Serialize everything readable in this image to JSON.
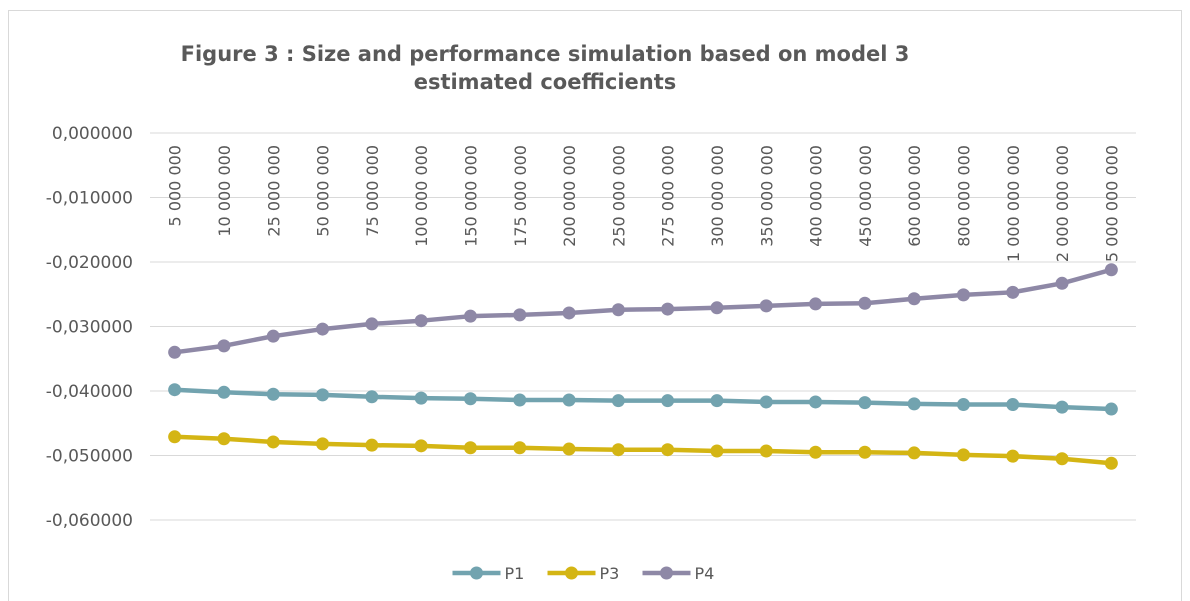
{
  "chart_data": {
    "type": "line",
    "title": "Figure 3 : Size and performance simulation based on model 3 estimated coefficients",
    "categories": [
      "5 000 000",
      "10 000 000",
      "25 000 000",
      "50 000 000",
      "75 000 000",
      "100 000 000",
      "150 000 000",
      "175 000 000",
      "200 000 000",
      "250 000 000",
      "275 000 000",
      "300 000 000",
      "350 000 000",
      "400 000 000",
      "450 000 000",
      "600 000 000",
      "800 000 000",
      "1 000 000 000",
      "2 000 000 000",
      "5 000 000 000"
    ],
    "series": [
      {
        "name": "P1",
        "color": "#72a3af",
        "values": [
          -0.0398,
          -0.0402,
          -0.0405,
          -0.0406,
          -0.0409,
          -0.0411,
          -0.0412,
          -0.0414,
          -0.0414,
          -0.0415,
          -0.0415,
          -0.0415,
          -0.0417,
          -0.0417,
          -0.0418,
          -0.042,
          -0.0421,
          -0.0421,
          -0.0425,
          -0.0428
        ]
      },
      {
        "name": "P3",
        "color": "#d4b514",
        "values": [
          -0.0471,
          -0.0474,
          -0.0479,
          -0.0482,
          -0.0484,
          -0.0485,
          -0.0488,
          -0.0488,
          -0.049,
          -0.0491,
          -0.0491,
          -0.0493,
          -0.0493,
          -0.0495,
          -0.0495,
          -0.0496,
          -0.0499,
          -0.0501,
          -0.0505,
          -0.0512
        ]
      },
      {
        "name": "P4",
        "color": "#8e88a6",
        "values": [
          -0.034,
          -0.033,
          -0.0315,
          -0.0304,
          -0.0296,
          -0.0291,
          -0.0284,
          -0.0282,
          -0.0279,
          -0.0274,
          -0.0273,
          -0.0271,
          -0.0268,
          -0.0265,
          -0.0264,
          -0.0257,
          -0.0251,
          -0.0247,
          -0.0233,
          -0.0212
        ]
      }
    ],
    "ylim": [
      -0.06,
      0
    ],
    "yticks": [
      {
        "value": -0.06,
        "label": "-0,060000"
      },
      {
        "value": -0.05,
        "label": "-0,050000"
      },
      {
        "value": -0.04,
        "label": "-0,040000"
      },
      {
        "value": -0.03,
        "label": "-0,030000"
      },
      {
        "value": -0.02,
        "label": "-0,020000"
      },
      {
        "value": -0.01,
        "label": "-0,010000"
      },
      {
        "value": 0,
        "label": "0,000000"
      }
    ],
    "grid": true,
    "legend": "bottom"
  }
}
